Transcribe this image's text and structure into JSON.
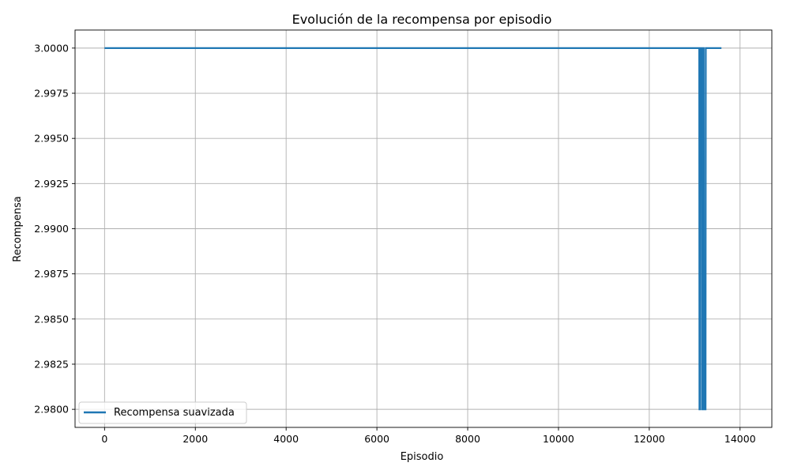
{
  "chart_data": {
    "type": "line",
    "title": "Evolución de la recompensa por episodio",
    "xlabel": "Episodio",
    "ylabel": "Recompensa",
    "xlim": [
      -650,
      14700
    ],
    "ylim": [
      2.979,
      3.001
    ],
    "xticks": [
      0,
      2000,
      4000,
      6000,
      8000,
      10000,
      12000,
      14000
    ],
    "yticks": [
      2.98,
      2.9825,
      2.985,
      2.9875,
      2.99,
      2.9925,
      2.995,
      2.9975,
      3.0
    ],
    "xtick_labels": [
      "0",
      "2000",
      "4000",
      "6000",
      "8000",
      "10000",
      "12000",
      "14000"
    ],
    "ytick_labels": [
      "2.9800",
      "2.9825",
      "2.9850",
      "2.9875",
      "2.9900",
      "2.9925",
      "2.9950",
      "2.9975",
      "3.0000"
    ],
    "grid": true,
    "legend_position": "lower-left",
    "series": [
      {
        "name": "Recompensa suavizada",
        "color": "#1f77b4",
        "x": [
          0,
          13100,
          13105,
          13120,
          13125,
          13160,
          13165,
          13170,
          13175,
          13200,
          13205,
          13240,
          13245,
          13590
        ],
        "y": [
          3.0,
          3.0,
          2.98,
          2.98,
          3.0,
          3.0,
          2.98,
          2.98,
          3.0,
          3.0,
          2.98,
          2.98,
          3.0,
          3.0
        ]
      }
    ]
  }
}
